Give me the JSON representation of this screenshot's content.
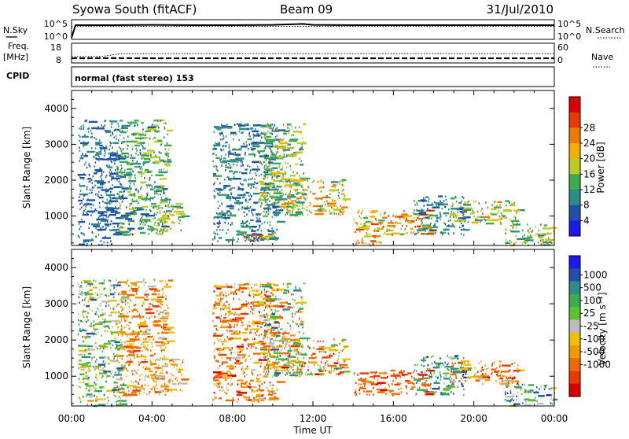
{
  "header": {
    "station": "Syowa South (fitACF)",
    "beam": "Beam 09",
    "date": "31/Jul/2010"
  },
  "side_labels": {
    "nsky": "N.Sky",
    "freq_line1": "Freq.",
    "freq_line2": "[MHz]",
    "cpid": "CPID",
    "nsearch": "N.Search",
    "nave": "Nave"
  },
  "mode_text": "normal (fast stereo) 153",
  "x_axis": {
    "label": "Time UT",
    "ticks": [
      "00:00",
      "04:00",
      "08:00",
      "12:00",
      "16:00",
      "20:00",
      "00:00"
    ]
  },
  "chart_data": [
    {
      "type": "line",
      "panel": "noise",
      "y_ticks_left": [
        "10^5",
        "10^0"
      ],
      "y_ticks_right": [
        "10^5",
        "10^0"
      ],
      "series": [
        {
          "name": "N.Sky",
          "x_hours": [
            0,
            0.2,
            2,
            4,
            6,
            8,
            10,
            11.5,
            12,
            14,
            16,
            18,
            20,
            22,
            24
          ],
          "values_log10": [
            0,
            4.0,
            4.0,
            4.1,
            4.0,
            4.0,
            4.1,
            4.4,
            4.1,
            4.0,
            4.0,
            4.0,
            4.0,
            4.0,
            4.0
          ]
        },
        {
          "name": "N.Search",
          "x_hours": [
            0,
            4,
            8,
            12,
            16,
            20,
            24
          ],
          "values_log10": [
            3.6,
            3.6,
            3.6,
            3.6,
            3.6,
            3.6,
            3.6
          ]
        }
      ]
    },
    {
      "type": "line",
      "panel": "freq-nave",
      "y_ticks_left": [
        "18",
        "8"
      ],
      "y_ticks_right": [
        "60",
        "0"
      ],
      "series": [
        {
          "name": "Freq.",
          "x_hours": [
            0,
            2,
            4,
            6,
            8,
            10,
            12,
            14,
            16,
            18,
            20,
            22,
            24
          ],
          "values": [
            10.2,
            10.3,
            10.2,
            10.2,
            10.2,
            10.2,
            10.2,
            10.2,
            10.2,
            10.2,
            10.2,
            10.2,
            10.2
          ]
        },
        {
          "name": "Nave",
          "x_hours": [
            0,
            1.5,
            2.5,
            4,
            8,
            12,
            16,
            20,
            24
          ],
          "values": [
            20,
            21,
            33,
            33,
            33,
            33,
            33,
            33,
            33
          ]
        }
      ]
    },
    {
      "type": "heatmap",
      "panel": "power",
      "ylabel": "Slant Range [km]",
      "y_ticks": [
        "1000",
        "2000",
        "3000",
        "4000"
      ],
      "ylim": [
        180,
        4500
      ],
      "xlim_hours": [
        0,
        24
      ],
      "colorbar": {
        "label": "Power [dB]",
        "ticks": [
          "4",
          "8",
          "12",
          "16",
          "20",
          "24",
          "28"
        ],
        "colors": [
          "#1a1aee",
          "#2050a8",
          "#2e8c88",
          "#3caa52",
          "#b8cc22",
          "#f0b000",
          "#ee7a00",
          "#e83a00",
          "#dd0000"
        ]
      },
      "regions": [
        {
          "t": [
            0.3,
            2.5
          ],
          "r": [
            200,
            3700
          ],
          "v": [
            2,
            10
          ]
        },
        {
          "t": [
            2.2,
            4.8
          ],
          "r": [
            500,
            3700
          ],
          "v": [
            4,
            18
          ]
        },
        {
          "t": [
            4.0,
            5.5
          ],
          "r": [
            600,
            1500
          ],
          "v": [
            6,
            20
          ]
        },
        {
          "t": [
            7.0,
            10.2
          ],
          "r": [
            300,
            3600
          ],
          "v": [
            2,
            12
          ]
        },
        {
          "t": [
            8.5,
            9.8
          ],
          "r": [
            300,
            550
          ],
          "v": [
            18,
            32
          ]
        },
        {
          "t": [
            9.3,
            11.5
          ],
          "r": [
            1000,
            3600
          ],
          "v": [
            6,
            22
          ]
        },
        {
          "t": [
            10.3,
            13.6
          ],
          "r": [
            1050,
            2050
          ],
          "v": [
            8,
            26
          ]
        },
        {
          "t": [
            14.0,
            17.8
          ],
          "r": [
            500,
            1200
          ],
          "v": [
            12,
            30
          ]
        },
        {
          "t": [
            14.0,
            15.6
          ],
          "r": [
            200,
            500
          ],
          "v": [
            16,
            30
          ]
        },
        {
          "t": [
            17.0,
            19.5
          ],
          "r": [
            500,
            1600
          ],
          "v": [
            2,
            12
          ]
        },
        {
          "t": [
            18.8,
            22.2
          ],
          "r": [
            800,
            1450
          ],
          "v": [
            6,
            24
          ]
        },
        {
          "t": [
            21.5,
            24.0
          ],
          "r": [
            200,
            800
          ],
          "v": [
            6,
            22
          ]
        }
      ]
    },
    {
      "type": "heatmap",
      "panel": "velocity",
      "ylabel": "Slant Range [km]",
      "y_ticks": [
        "1000",
        "2000",
        "3000",
        "4000"
      ],
      "ylim": [
        180,
        4500
      ],
      "xlim_hours": [
        0,
        24
      ],
      "colorbar": {
        "label": "Velocity [m s⁻¹]",
        "ticks": [
          "1000",
          "500",
          "100",
          "25",
          "-25",
          "-100",
          "-500",
          "-1000"
        ],
        "colors": [
          "#1a1aee",
          "#2050a8",
          "#2e8c88",
          "#3caa52",
          "#60c030",
          "#bcbcbc",
          "#f0c000",
          "#ee9a00",
          "#ee6a00",
          "#e83a00",
          "#dd0000"
        ]
      },
      "regions": [
        {
          "t": [
            0.3,
            2.5
          ],
          "r": [
            200,
            3700
          ],
          "v": [
            1,
            7
          ]
        },
        {
          "t": [
            2.2,
            4.8
          ],
          "r": [
            500,
            3700
          ],
          "v": [
            5,
            9
          ]
        },
        {
          "t": [
            4.0,
            5.5
          ],
          "r": [
            600,
            1500
          ],
          "v": [
            4,
            9
          ]
        },
        {
          "t": [
            7.0,
            10.2
          ],
          "r": [
            300,
            3600
          ],
          "v": [
            5,
            10
          ]
        },
        {
          "t": [
            9.3,
            11.5
          ],
          "r": [
            1000,
            3600
          ],
          "v": [
            1,
            9
          ]
        },
        {
          "t": [
            10.3,
            13.6
          ],
          "r": [
            1050,
            2050
          ],
          "v": [
            3,
            10
          ]
        },
        {
          "t": [
            14.0,
            17.8
          ],
          "r": [
            500,
            1200
          ],
          "v": [
            7,
            10
          ]
        },
        {
          "t": [
            17.0,
            19.5
          ],
          "r": [
            500,
            1600
          ],
          "v": [
            0,
            5
          ]
        },
        {
          "t": [
            18.8,
            22.2
          ],
          "r": [
            800,
            1450
          ],
          "v": [
            5,
            10
          ]
        },
        {
          "t": [
            21.5,
            24.0
          ],
          "r": [
            200,
            800
          ],
          "v": [
            0,
            6
          ]
        }
      ]
    }
  ]
}
